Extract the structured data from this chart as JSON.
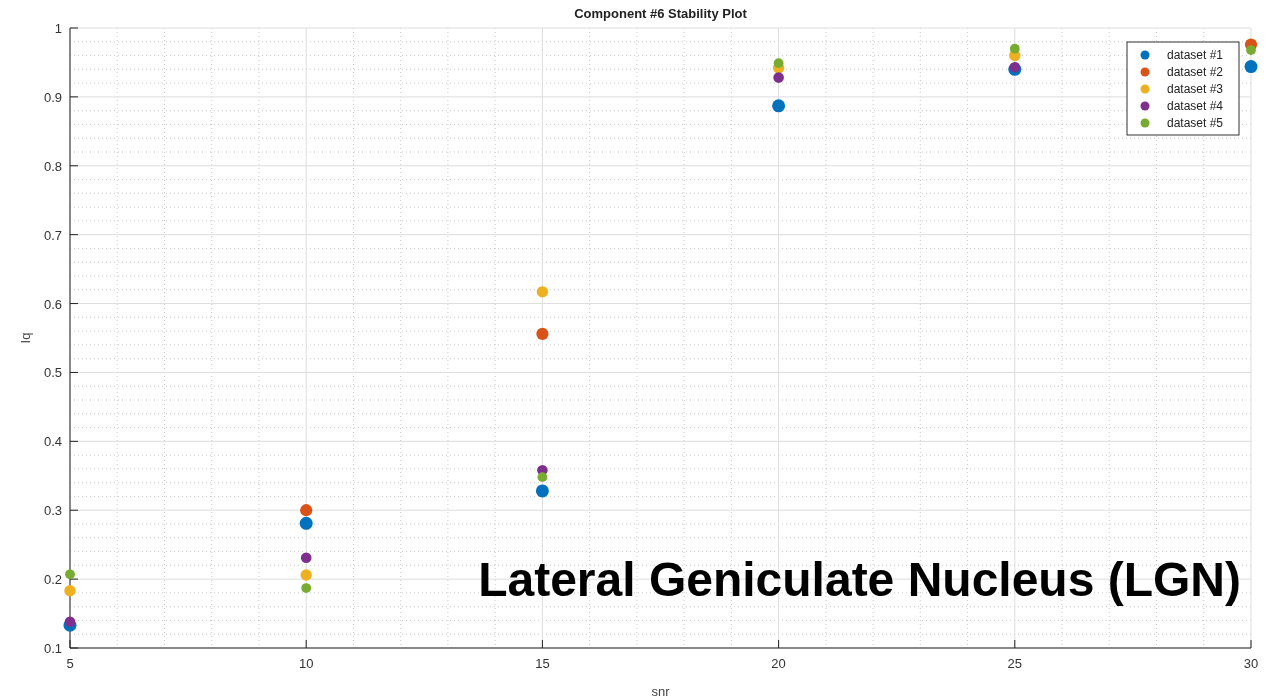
{
  "chart_data": {
    "type": "scatter",
    "title": "Component #6 Stability Plot",
    "xlabel": "snr",
    "ylabel": "Iq",
    "x": [
      5,
      10,
      15,
      20,
      25,
      30
    ],
    "series": [
      {
        "name": "dataset #1",
        "color": "#0072bd",
        "values": [
          0.133,
          0.281,
          0.328,
          0.887,
          0.94,
          0.944
        ]
      },
      {
        "name": "dataset #2",
        "color": "#d95319",
        "values": [
          null,
          0.3,
          0.556,
          null,
          null,
          0.976
        ]
      },
      {
        "name": "dataset #3",
        "color": "#edb120",
        "values": [
          0.183,
          0.206,
          0.617,
          0.942,
          0.96,
          null
        ]
      },
      {
        "name": "dataset #4",
        "color": "#7e2f8e",
        "values": [
          0.138,
          0.231,
          0.358,
          0.928,
          0.943,
          null
        ]
      },
      {
        "name": "dataset #5",
        "color": "#77ac30",
        "values": [
          0.207,
          0.187,
          0.348,
          0.949,
          0.97,
          0.968
        ]
      }
    ],
    "xlim": [
      5,
      30
    ],
    "xticks": [
      5,
      10,
      15,
      20,
      25,
      30
    ],
    "ylim": [
      0.1,
      1
    ],
    "yticks": [
      0.1,
      0.2,
      0.3,
      0.4,
      0.5,
      0.6,
      0.7,
      0.8,
      0.9,
      1
    ],
    "grid": true,
    "legend": "top right",
    "marker": "circle",
    "annotations": [
      "Lateral Geniculate Nucleus (LGN)"
    ]
  }
}
